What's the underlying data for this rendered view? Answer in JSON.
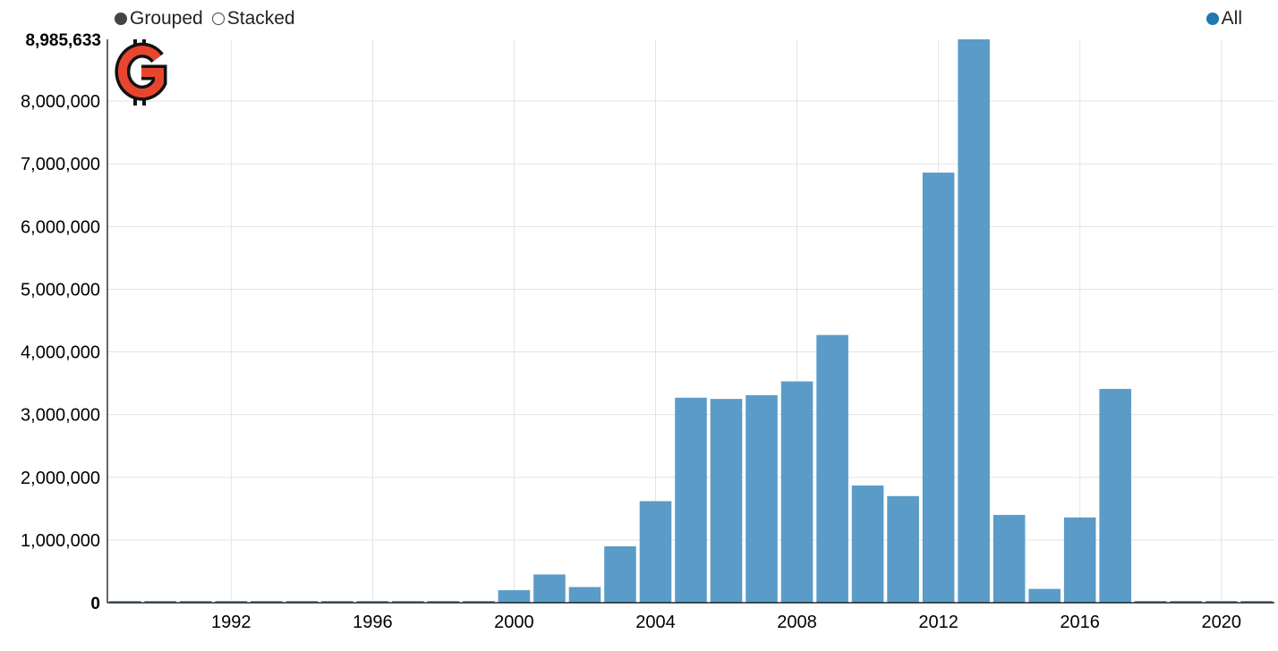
{
  "controls": {
    "grouped_label": "Grouped",
    "stacked_label": "Stacked",
    "selected": "Grouped"
  },
  "legend": {
    "label": "All",
    "color": "#1f77b4"
  },
  "colors": {
    "bar": "#5a9bc8",
    "grid": "#e3e3e3",
    "logo": "#e8452f"
  },
  "logo": {
    "icon": "gitcoin-g-logo-icon"
  },
  "chart_data": {
    "type": "bar",
    "x": [
      1989,
      1990,
      1991,
      1992,
      1993,
      1994,
      1995,
      1996,
      1997,
      1998,
      1999,
      2000,
      2001,
      2002,
      2003,
      2004,
      2005,
      2006,
      2007,
      2008,
      2009,
      2010,
      2011,
      2012,
      2013,
      2014,
      2015,
      2016,
      2017,
      2018,
      2019,
      2020,
      2021
    ],
    "series": [
      {
        "name": "All",
        "values": [
          20000,
          20000,
          20000,
          20000,
          20000,
          20000,
          20000,
          20000,
          20000,
          20000,
          20000,
          200000,
          450000,
          250000,
          900000,
          1620000,
          3270000,
          3250000,
          3310000,
          3530000,
          4270000,
          1870000,
          1700000,
          6860000,
          8985633,
          1400000,
          220000,
          1360000,
          3410000,
          20000,
          20000,
          20000,
          20000
        ]
      }
    ],
    "ylim": [
      0,
      8985633
    ],
    "ymax_label": "8,985,633",
    "yticks": [
      0,
      1000000,
      2000000,
      3000000,
      4000000,
      5000000,
      6000000,
      7000000,
      8000000
    ],
    "ytick_labels": [
      "0",
      "1,000,000",
      "2,000,000",
      "3,000,000",
      "4,000,000",
      "5,000,000",
      "6,000,000",
      "7,000,000",
      "8,000,000"
    ],
    "xticks": [
      1992,
      1996,
      2000,
      2004,
      2008,
      2012,
      2016,
      2020
    ],
    "xtick_labels": [
      "1992",
      "1996",
      "2000",
      "2004",
      "2008",
      "2012",
      "2016",
      "2020"
    ],
    "grid": true,
    "legend_position": "top-right"
  }
}
